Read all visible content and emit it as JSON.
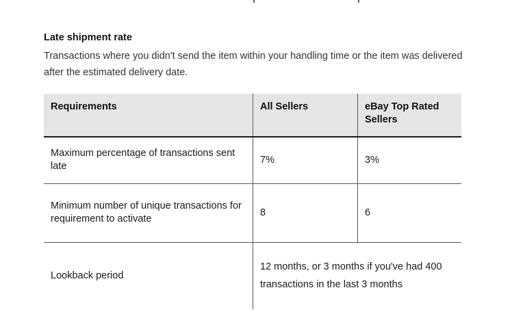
{
  "section": {
    "title": "Late shipment rate",
    "description": "Transactions where you didn't send the item within your handling time or the item was delivered after the estimated delivery date."
  },
  "table": {
    "headers": [
      "Requirements",
      "All Sellers",
      "eBay Top Rated Sellers"
    ],
    "rows": [
      {
        "requirement": "Maximum percentage of transactions sent late",
        "all_sellers": "7%",
        "top_rated": "3%"
      },
      {
        "requirement": "Minimum number of unique transactions for requirement to activate",
        "all_sellers": "8",
        "top_rated": "6"
      },
      {
        "requirement": "Lookback period",
        "all_sellers": "12 months, or 3 months if you've had 400 transactions in the last 3 months"
      }
    ]
  }
}
